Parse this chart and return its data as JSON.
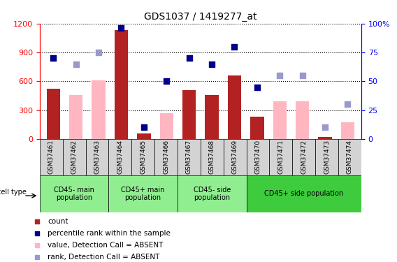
{
  "title": "GDS1037 / 1419277_at",
  "samples": [
    "GSM37461",
    "GSM37462",
    "GSM37463",
    "GSM37464",
    "GSM37465",
    "GSM37466",
    "GSM37467",
    "GSM37468",
    "GSM37469",
    "GSM37470",
    "GSM37471",
    "GSM37472",
    "GSM37473",
    "GSM37474"
  ],
  "count_present": [
    520,
    null,
    null,
    1130,
    60,
    null,
    510,
    460,
    660,
    230,
    null,
    null,
    20,
    null
  ],
  "count_absent": [
    null,
    460,
    610,
    null,
    null,
    270,
    null,
    null,
    null,
    null,
    390,
    390,
    null,
    170
  ],
  "rank_present": [
    70,
    null,
    null,
    96,
    10,
    50,
    70,
    65,
    80,
    45,
    null,
    null,
    null,
    null
  ],
  "rank_absent": [
    null,
    65,
    75,
    null,
    null,
    null,
    null,
    null,
    null,
    null,
    55,
    55,
    10,
    30
  ],
  "ylim_left": [
    0,
    1200
  ],
  "ylim_right": [
    0,
    100
  ],
  "yticks_left": [
    0,
    300,
    600,
    900,
    1200
  ],
  "yticks_right": [
    0,
    25,
    50,
    75,
    100
  ],
  "group_defs": [
    [
      0,
      3,
      "CD45- main\npopulation"
    ],
    [
      3,
      6,
      "CD45+ main\npopulation"
    ],
    [
      6,
      9,
      "CD45- side\npopulation"
    ],
    [
      9,
      14,
      "CD45+ side population"
    ]
  ],
  "bar_width": 0.6,
  "dark_red": "#B22222",
  "light_pink": "#FFB6C1",
  "dark_blue": "#00008B",
  "light_blue": "#9999CC",
  "sample_box_color": "#D3D3D3",
  "cell_type_color": "#90EE90",
  "cell_type_bright": "#3ECC3E"
}
